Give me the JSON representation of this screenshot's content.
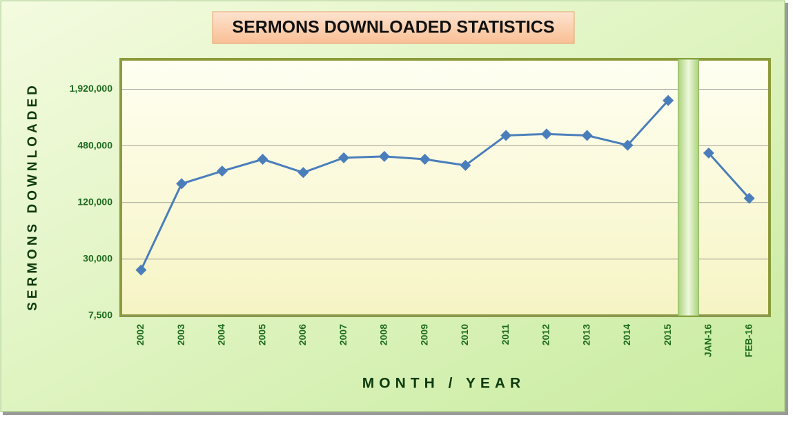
{
  "chart_data": {
    "type": "line",
    "title": "SERMONS DOWNLOADED STATISTICS",
    "y_label": "SERMONS DOWNLOADED",
    "x_label": "MONTH / YEAR",
    "categories": [
      "2002",
      "2003",
      "2004",
      "2005",
      "2006",
      "2007",
      "2008",
      "2009",
      "2010",
      "2011",
      "2012",
      "2013",
      "2014",
      "2015",
      "JAN-16",
      "FEB-16"
    ],
    "series": [
      {
        "color": "#4a7ebb",
        "values": [
          23000,
          190000,
          259000,
          346000,
          250000,
          359000,
          371000,
          346000,
          298000,
          620000,
          642000,
          620000,
          488000,
          1460000,
          null,
          null
        ]
      },
      {
        "color": "#4a7ebb",
        "values": [
          null,
          null,
          null,
          null,
          null,
          null,
          null,
          null,
          null,
          null,
          null,
          null,
          null,
          null,
          403000,
          133000
        ]
      }
    ],
    "log_scale": true,
    "ylim": [
      7500,
      4000000
    ],
    "yticks": [
      {
        "value": 7500,
        "label": "7,500"
      },
      {
        "value": 30000,
        "label": "30,000"
      },
      {
        "value": 120000,
        "label": "120,000"
      },
      {
        "value": 480000,
        "label": "480,000"
      },
      {
        "value": 1920000,
        "label": "1,920,000"
      }
    ],
    "grid": true
  }
}
